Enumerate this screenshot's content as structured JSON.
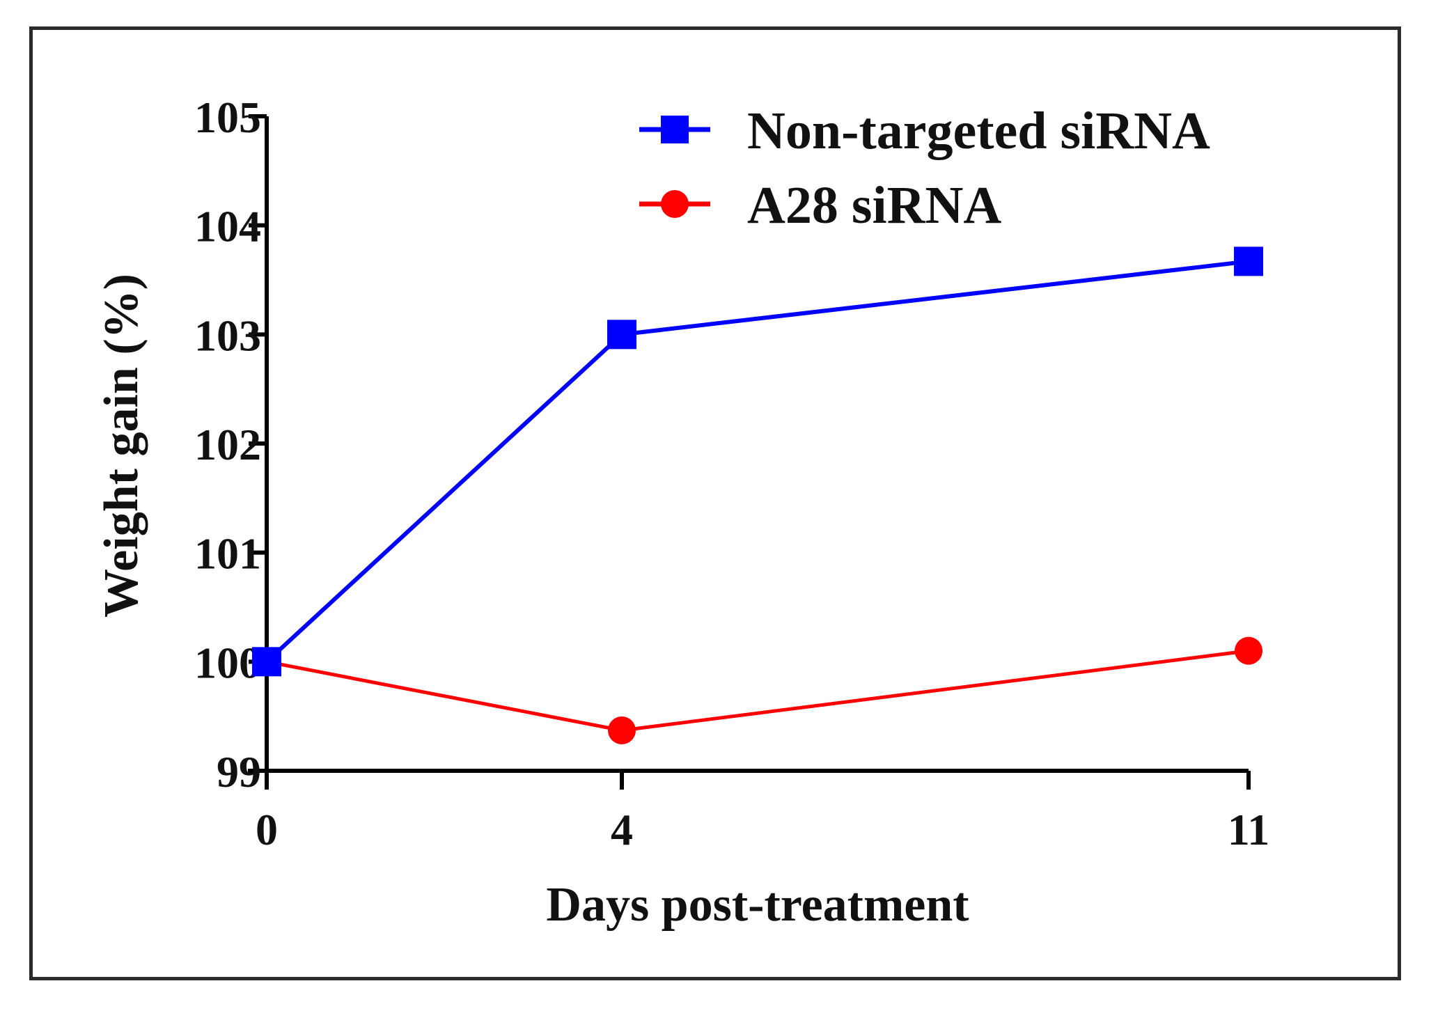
{
  "chart_data": {
    "type": "line",
    "title": "",
    "xlabel": "Days post-treatment",
    "ylabel": "Weight gain (%)",
    "x": [
      0,
      4,
      11
    ],
    "x_tick_labels": [
      "0",
      "4",
      "11"
    ],
    "ylim": [
      99,
      105
    ],
    "y_ticks": [
      99,
      100,
      101,
      102,
      103,
      104,
      105
    ],
    "y_tick_labels": [
      "99",
      "100",
      "101",
      "102",
      "103",
      "104",
      "105"
    ],
    "legend_position": "top-right",
    "series": [
      {
        "name": "Non-targeted siRNA",
        "values": [
          100,
          103,
          103.67
        ],
        "color": "#0000ff",
        "marker": "square"
      },
      {
        "name": "A28 siRNA",
        "values": [
          100,
          99.37,
          100.1
        ],
        "color": "#ff0000",
        "marker": "circle"
      }
    ]
  }
}
